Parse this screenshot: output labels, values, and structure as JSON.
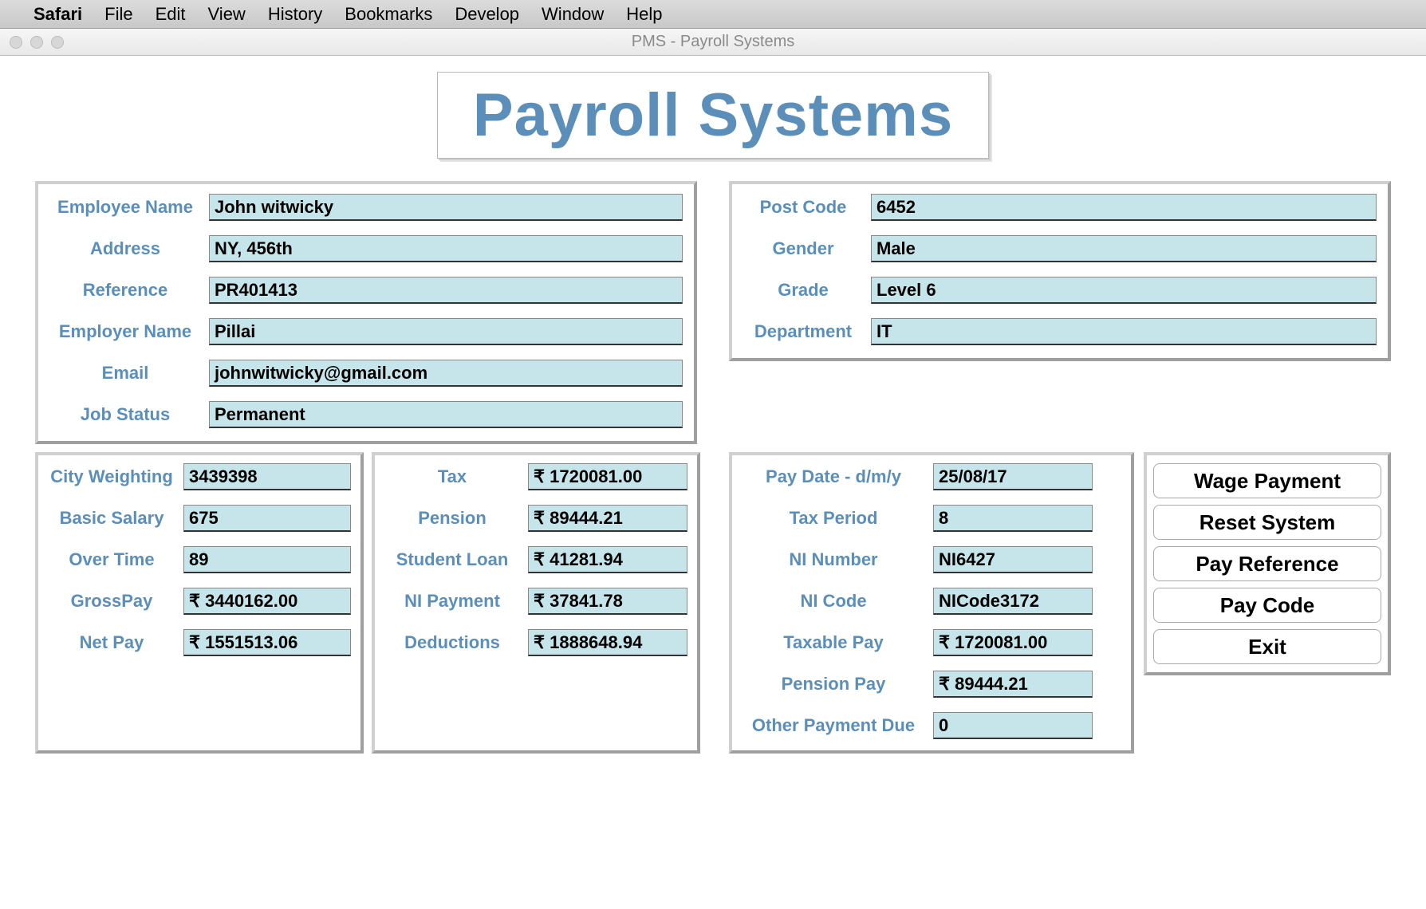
{
  "menubar": {
    "appname": "Safari",
    "items": [
      "File",
      "Edit",
      "View",
      "History",
      "Bookmarks",
      "Develop",
      "Window",
      "Help"
    ]
  },
  "window": {
    "title": "PMS - Payroll Systems"
  },
  "heading": "Payroll Systems",
  "colors": {
    "accent": "#5b8fb9",
    "field_bg": "#c6e5ea",
    "panel_border_light": "#cfcfcf",
    "panel_border_dark": "#9f9f9f"
  },
  "employee": {
    "name_label": "Employee Name",
    "name": "John witwicky",
    "address_label": "Address",
    "address": "NY, 456th",
    "reference_label": "Reference",
    "reference": "PR401413",
    "employer_label": "Employer Name",
    "employer": "Pillai",
    "email_label": "Email",
    "email": "johnwitwicky@gmail.com",
    "status_label": "Job Status",
    "status": "Permanent"
  },
  "profile": {
    "postcode_label": "Post Code",
    "postcode": "6452",
    "gender_label": "Gender",
    "gender": "Male",
    "grade_label": "Grade",
    "grade": "Level 6",
    "department_label": "Department",
    "department": "IT"
  },
  "salary": {
    "city_weighting_label": "City Weighting",
    "city_weighting": "3439398",
    "basic_salary_label": "Basic Salary",
    "basic_salary": "675",
    "over_time_label": "Over Time",
    "over_time": "89",
    "gross_pay_label": "GrossPay",
    "gross_pay": "₹ 3440162.00",
    "net_pay_label": "Net Pay",
    "net_pay": "₹ 1551513.06"
  },
  "deductions": {
    "tax_label": "Tax",
    "tax": "₹ 1720081.00",
    "pension_label": "Pension",
    "pension": "₹ 89444.21",
    "student_loan_label": "Student Loan",
    "student_loan": "₹ 41281.94",
    "ni_payment_label": "NI Payment",
    "ni_payment": "₹ 37841.78",
    "deductions_label": "Deductions",
    "deductions": "₹ 1888648.94"
  },
  "pay": {
    "pay_date_label": "Pay Date - d/m/y",
    "pay_date": "25/08/17",
    "tax_period_label": "Tax Period",
    "tax_period": "8",
    "ni_number_label": "NI Number",
    "ni_number": "NI6427",
    "ni_code_label": "NI Code",
    "ni_code": "NICode3172",
    "taxable_pay_label": "Taxable Pay",
    "taxable_pay": "₹ 1720081.00",
    "pension_pay_label": "Pension Pay",
    "pension_pay": "₹ 89444.21",
    "other_due_label": "Other Payment Due",
    "other_due": "0"
  },
  "buttons": {
    "wage_payment": "Wage Payment",
    "reset_system": "Reset System",
    "pay_reference": "Pay Reference",
    "pay_code": "Pay Code",
    "exit": "Exit"
  }
}
